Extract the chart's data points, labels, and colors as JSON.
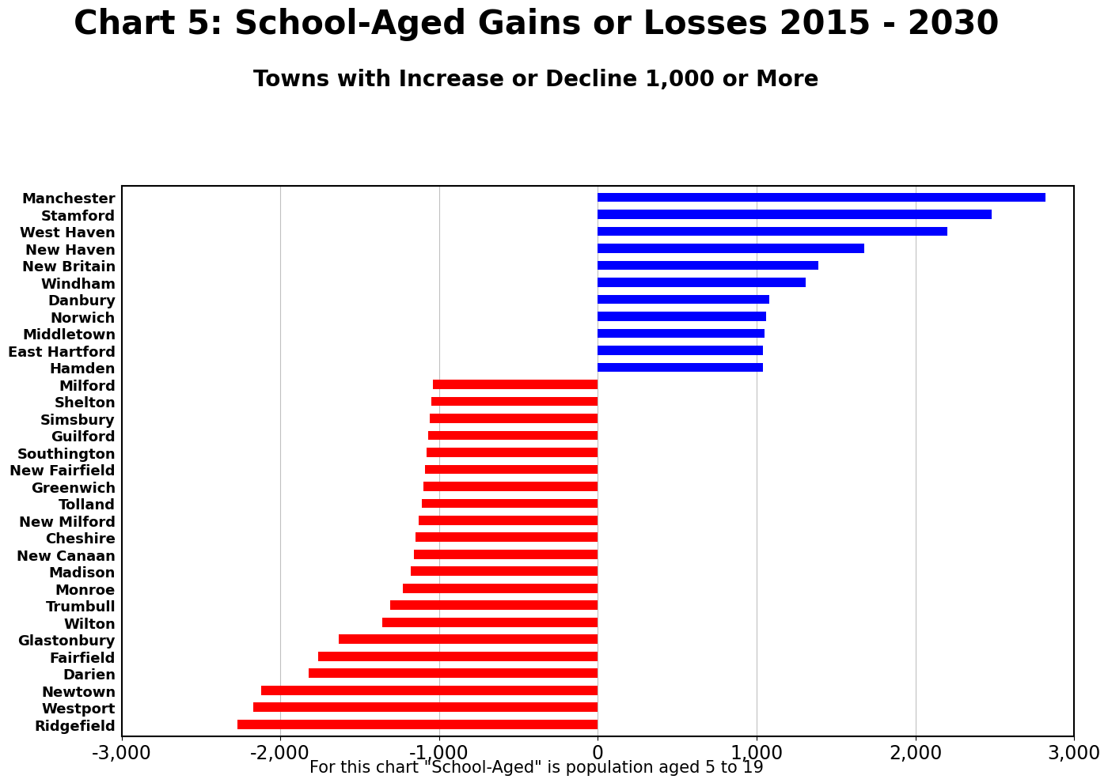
{
  "title": "Chart 5: School-Aged Gains or Losses 2015 - 2030",
  "subtitle": "Towns with Increase or Decline 1,000 or More",
  "footnote": "For this chart \"School-Aged\" is population aged 5 to 19",
  "categories": [
    "Manchester",
    "Stamford",
    "West Haven",
    "New Haven",
    "New Britain",
    "Windham",
    "Danbury",
    "Norwich",
    "Middletown",
    "East Hartford",
    "Hamden",
    "Milford",
    "Shelton",
    "Simsbury",
    "Guilford",
    "Southington",
    "New Fairfield",
    "Greenwich",
    "Tolland",
    "New Milford",
    "Cheshire",
    "New Canaan",
    "Madison",
    "Monroe",
    "Trumbull",
    "Wilton",
    "Glastonbury",
    "Fairfield",
    "Darien",
    "Newtown",
    "Westport",
    "Ridgefield"
  ],
  "values": [
    2820,
    2480,
    2200,
    1680,
    1390,
    1310,
    1080,
    1060,
    1050,
    1040,
    1040,
    -1040,
    -1050,
    -1060,
    -1070,
    -1080,
    -1090,
    -1100,
    -1110,
    -1130,
    -1150,
    -1160,
    -1180,
    -1230,
    -1310,
    -1360,
    -1630,
    -1760,
    -1820,
    -2120,
    -2170,
    -2270
  ],
  "positive_color": "#0000ff",
  "negative_color": "#ff0000",
  "xlim": [
    -3000,
    3000
  ],
  "xticks": [
    -3000,
    -2000,
    -1000,
    0,
    1000,
    2000,
    3000
  ],
  "background_color": "#ffffff",
  "title_fontsize": 30,
  "subtitle_fontsize": 20,
  "tick_fontsize": 17,
  "label_fontsize": 13,
  "footnote_fontsize": 15,
  "bar_height": 0.55
}
